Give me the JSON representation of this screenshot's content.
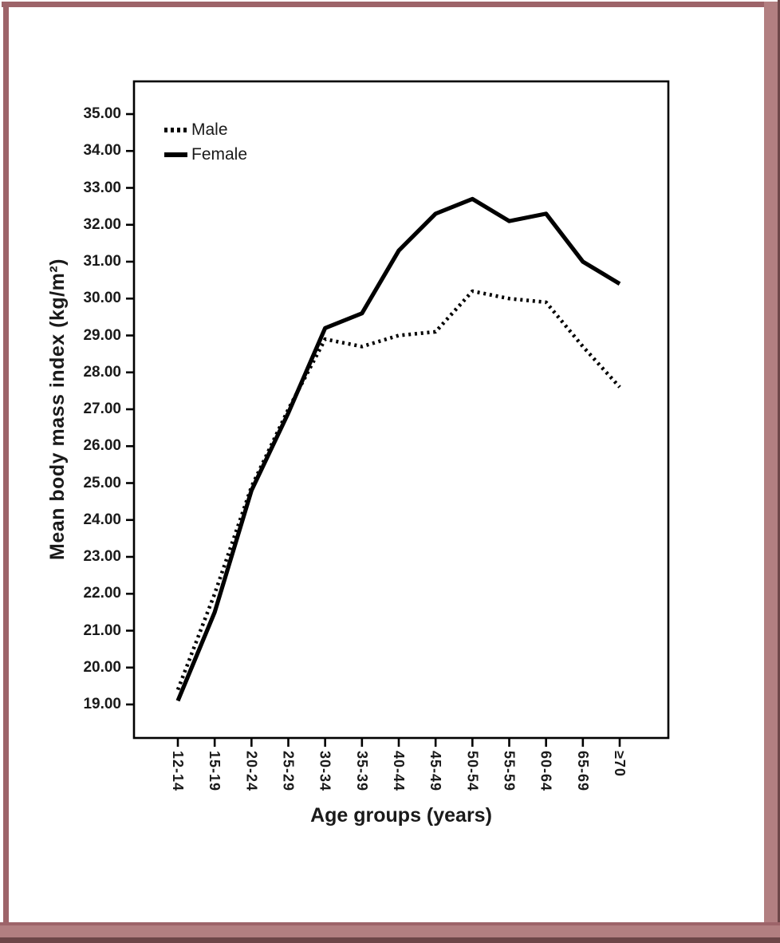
{
  "frame": {
    "thin_color": "#9d6469",
    "band_color": "#b27f81",
    "edge_color": "#6d4648"
  },
  "chart_data": {
    "type": "line",
    "title": "",
    "xlabel": "Age groups (years)",
    "ylabel": "Mean body mass index (kg/m²)",
    "categories": [
      "12-14",
      "15-19",
      "20-24",
      "25-29",
      "30-34",
      "35-39",
      "40-44",
      "45-49",
      "50-54",
      "55-59",
      "60-64",
      "65-69",
      "≥70"
    ],
    "series": [
      {
        "name": "Male",
        "style": "dotted",
        "values": [
          19.4,
          22.0,
          24.9,
          27.0,
          28.9,
          28.7,
          29.0,
          29.1,
          30.2,
          30.0,
          29.9,
          28.7,
          27.6
        ]
      },
      {
        "name": "Female",
        "style": "solid",
        "values": [
          19.1,
          21.5,
          24.8,
          26.9,
          29.2,
          29.6,
          31.3,
          32.3,
          32.7,
          32.1,
          32.3,
          31.0,
          30.4
        ]
      }
    ],
    "ylim": [
      19,
      35
    ],
    "ytick_step": 1,
    "yticks": [
      "35.00",
      "34.00",
      "33.00",
      "32.00",
      "31.00",
      "30.00",
      "29.00",
      "28.00",
      "27.00",
      "26.00",
      "25.00",
      "24.00",
      "23.00",
      "22.00",
      "21.00",
      "20.00",
      "19.00"
    ],
    "legend_position": "top-left",
    "grid": false,
    "line_color": "#000000"
  }
}
